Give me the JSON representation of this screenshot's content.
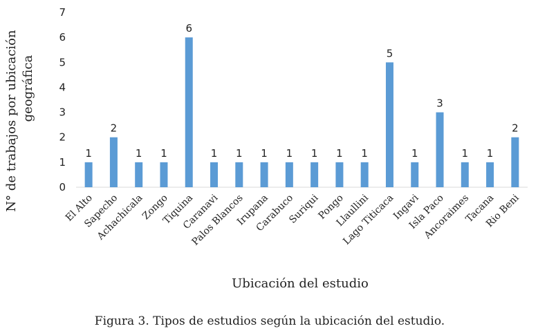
{
  "chart_data": {
    "type": "bar",
    "categories": [
      "El Alto",
      "Sapecho",
      "Achachicala",
      "Zongo",
      "Tiquina",
      "Caranavi",
      "Palos Blancos",
      "Irupana",
      "Carabuco",
      "Suriqui",
      "Pongo",
      "Llaullini",
      "Lago Titicaca",
      "Ingavi",
      "Isla Paco",
      "Ancoraimes",
      "Tacana",
      "Rio Beni"
    ],
    "values": [
      1,
      2,
      1,
      1,
      6,
      1,
      1,
      1,
      1,
      1,
      1,
      1,
      5,
      1,
      3,
      1,
      1,
      2
    ],
    "xlabel": "Ubicación del estudio",
    "ylabel_lines": [
      "N° de trabajos por ubicación",
      "geográfica"
    ],
    "ylim": [
      0,
      7
    ],
    "yticks": [
      0,
      1,
      2,
      3,
      4,
      5,
      6,
      7
    ],
    "bar_color": "#5b9bd5",
    "grid": false,
    "data_labels": true
  },
  "caption": "Figura 3. Tipos de estudios según la ubicación del estudio."
}
